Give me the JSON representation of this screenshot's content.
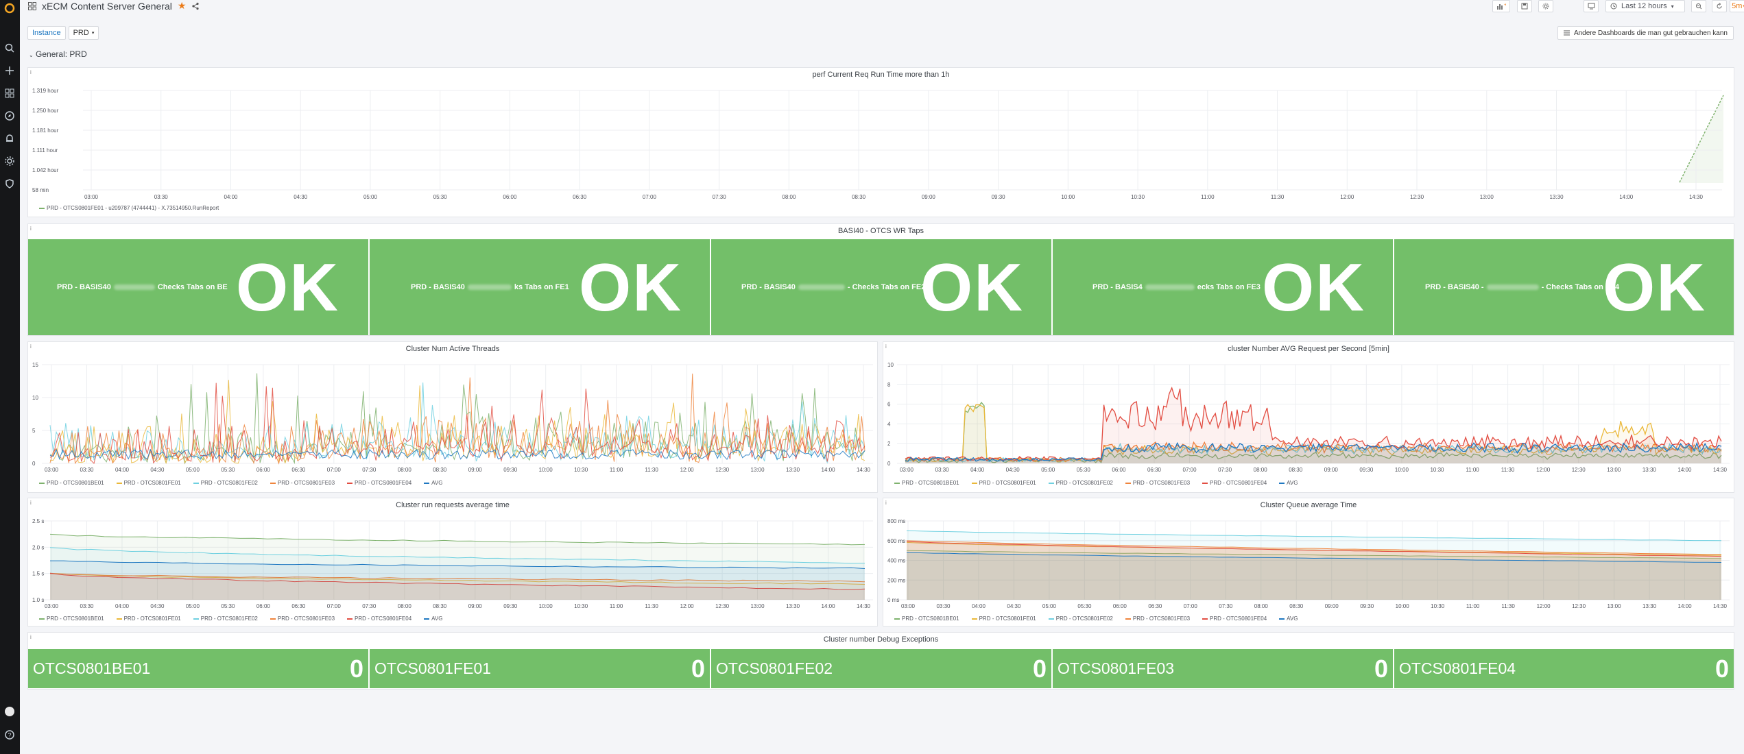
{
  "dashboard": {
    "title": "xECM Content Server General",
    "time_range": "Last 12 hours",
    "refresh": "5m"
  },
  "variables": {
    "label": "Instance",
    "value": "PRD"
  },
  "row_title": "General: PRD",
  "dash_link": "Andere Dashboards die man gut gebrauchen kann",
  "time_ticks": [
    "03:00",
    "03:30",
    "04:00",
    "04:30",
    "05:00",
    "05:30",
    "06:00",
    "06:30",
    "07:00",
    "07:30",
    "08:00",
    "08:30",
    "09:00",
    "09:30",
    "10:00",
    "10:30",
    "11:00",
    "11:30",
    "12:00",
    "12:30",
    "13:00",
    "13:30",
    "14:00",
    "14:30"
  ],
  "colors": {
    "be01": "#7eb26d",
    "fe01": "#eab839",
    "fe02": "#6ed0e0",
    "fe03": "#ef843c",
    "fe04": "#e24d42",
    "avg": "#1f78c1",
    "ok": "#73bf69"
  },
  "series_names": [
    "PRD - OTCS0801BE01",
    "PRD - OTCS0801FE01",
    "PRD - OTCS0801FE02",
    "PRD - OTCS0801FE03",
    "PRD - OTCS0801FE04",
    "AVG"
  ],
  "panels": {
    "perf": {
      "title": "perf Current Req Run Time more than 1h",
      "y_ticks": [
        "1.319 hour",
        "1.250 hour",
        "1.181 hour",
        "1.111 hour",
        "1.042 hour",
        "58 min"
      ],
      "legend": "PRD - OTCS0801FE01 - u209787 (4744441) - X.73514950.RunReport"
    },
    "basis": {
      "title": "BASI40 - OTCS WR Taps",
      "tiles": [
        {
          "left": "PRD - BASIS40",
          "right": "Checks Tabs on BE",
          "value": "OK"
        },
        {
          "left": "PRD - BASIS40",
          "right": "ks Tabs on FE1",
          "value": "OK"
        },
        {
          "left": "PRD - BASIS40",
          "right": "- Checks Tabs on FE2",
          "value": "OK"
        },
        {
          "left": "PRD - BASIS4",
          "right": "ecks Tabs on FE3",
          "value": "OK"
        },
        {
          "left": "PRD - BASIS40 -",
          "right": "- Checks Tabs on FE4",
          "value": "OK"
        }
      ]
    },
    "threads": {
      "title": "Cluster Num Active Threads",
      "y_ticks": [
        "15",
        "10",
        "5",
        "0"
      ]
    },
    "reqps": {
      "title": "cluster Number AVG Request per Second [5min]",
      "y_ticks": [
        "10",
        "8",
        "6",
        "4",
        "2",
        "0"
      ]
    },
    "runtime": {
      "title": "Cluster run requests average time",
      "y_ticks": [
        "2.5 s",
        "2.0 s",
        "1.5 s",
        "1.0 s"
      ]
    },
    "queue": {
      "title": "Cluster Queue average Time",
      "y_ticks": [
        "800 ms",
        "600 ms",
        "400 ms",
        "200 ms",
        "0 ms"
      ]
    },
    "debug": {
      "title": "Cluster number Debug Exceptions",
      "tiles": [
        {
          "name": "OTCS0801BE01",
          "value": "0"
        },
        {
          "name": "OTCS0801FE01",
          "value": "0"
        },
        {
          "name": "OTCS0801FE02",
          "value": "0"
        },
        {
          "name": "OTCS0801FE03",
          "value": "0"
        },
        {
          "name": "OTCS0801FE04",
          "value": "0"
        }
      ]
    }
  }
}
